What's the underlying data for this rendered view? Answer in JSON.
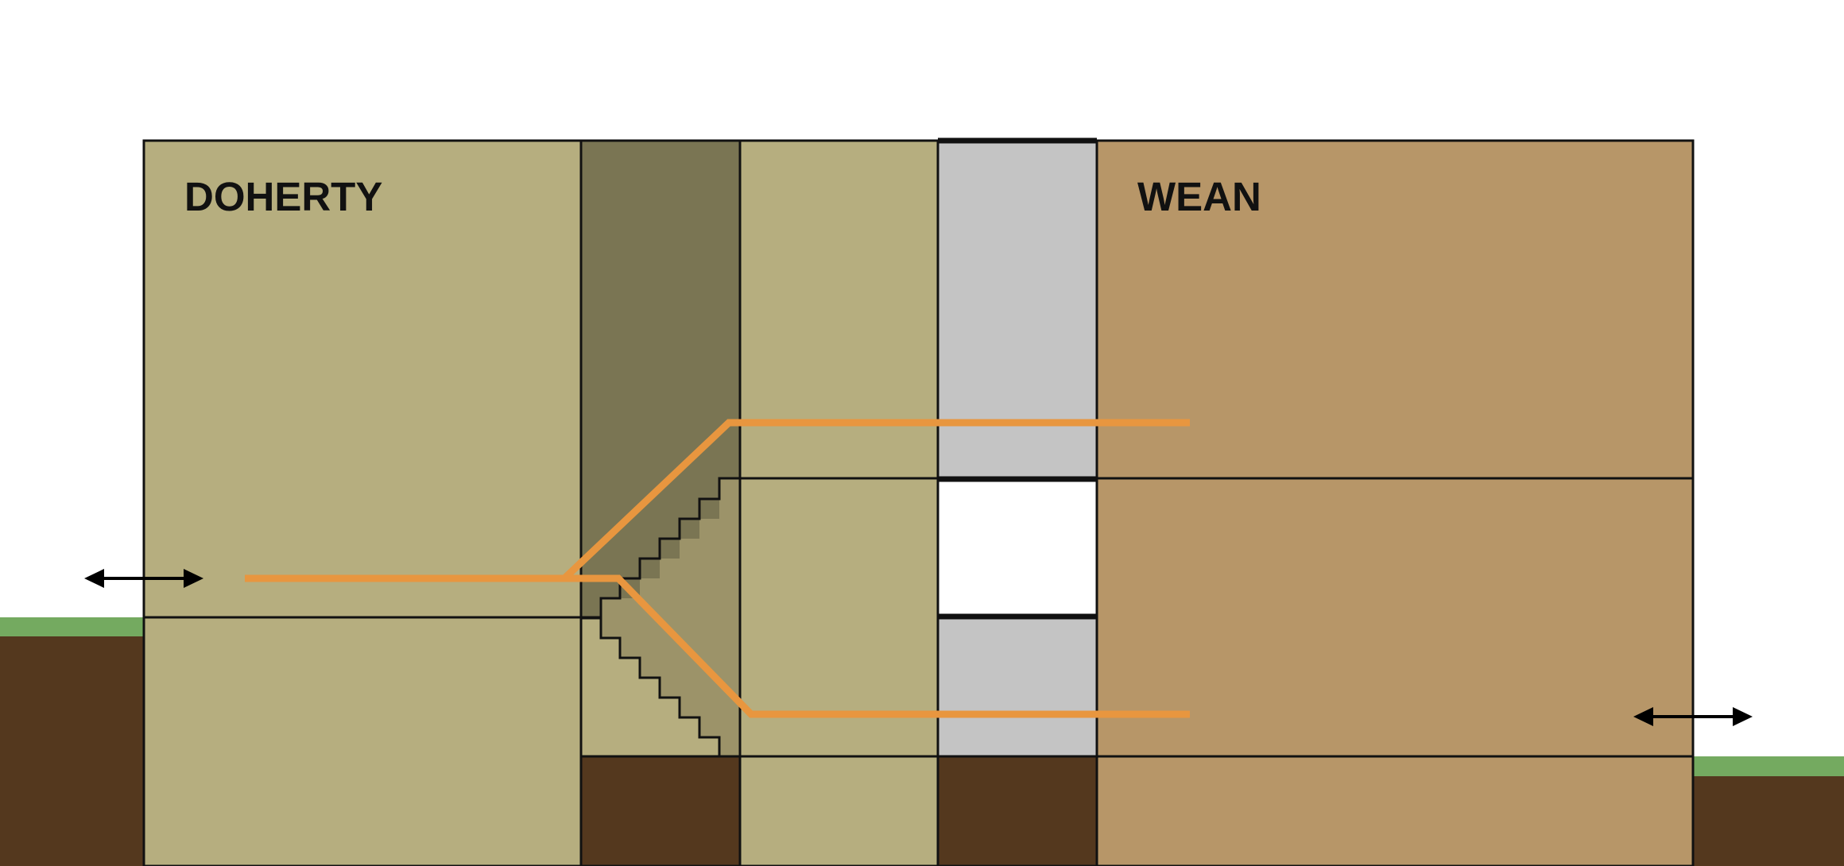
{
  "buildings": {
    "left": {
      "name": "DOHERTY"
    },
    "right": {
      "name": "WEAN"
    }
  },
  "colors": {
    "doherty": "#b6ae7f",
    "stair_shaft_dark": "#7a7553",
    "stair_fill": "#9c9369",
    "gap": "#c4c4c4",
    "opening": "#ffffff",
    "wean": "#b79668",
    "soil": "#54381e",
    "grass": "#74aa60",
    "route": "#e8963f",
    "outline": "#111111",
    "arrow": "#000000"
  },
  "icons": {
    "left_arrow": "double-arrow-icon",
    "right_arrow": "double-arrow-icon"
  }
}
